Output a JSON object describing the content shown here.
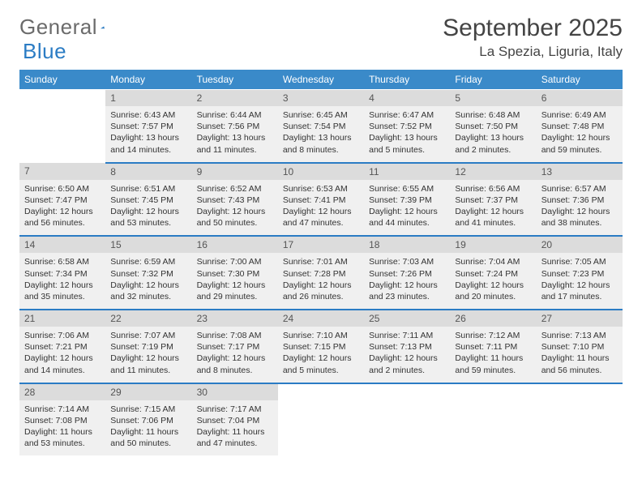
{
  "header": {
    "logo_text_1": "General",
    "logo_text_2": "Blue",
    "month_title": "September 2025",
    "location": "La Spezia, Liguria, Italy"
  },
  "days_of_week": [
    "Sunday",
    "Monday",
    "Tuesday",
    "Wednesday",
    "Thursday",
    "Friday",
    "Saturday"
  ],
  "colors": {
    "header_bg": "#3a8ac9",
    "daynum_bg": "#dcdcdc",
    "cell_bg": "#f0f0f0",
    "accent": "#2b7cc4",
    "text": "#333333"
  },
  "weeks": [
    [
      null,
      {
        "n": "1",
        "sr": "Sunrise: 6:43 AM",
        "ss": "Sunset: 7:57 PM",
        "dl": "Daylight: 13 hours and 14 minutes."
      },
      {
        "n": "2",
        "sr": "Sunrise: 6:44 AM",
        "ss": "Sunset: 7:56 PM",
        "dl": "Daylight: 13 hours and 11 minutes."
      },
      {
        "n": "3",
        "sr": "Sunrise: 6:45 AM",
        "ss": "Sunset: 7:54 PM",
        "dl": "Daylight: 13 hours and 8 minutes."
      },
      {
        "n": "4",
        "sr": "Sunrise: 6:47 AM",
        "ss": "Sunset: 7:52 PM",
        "dl": "Daylight: 13 hours and 5 minutes."
      },
      {
        "n": "5",
        "sr": "Sunrise: 6:48 AM",
        "ss": "Sunset: 7:50 PM",
        "dl": "Daylight: 13 hours and 2 minutes."
      },
      {
        "n": "6",
        "sr": "Sunrise: 6:49 AM",
        "ss": "Sunset: 7:48 PM",
        "dl": "Daylight: 12 hours and 59 minutes."
      }
    ],
    [
      {
        "n": "7",
        "sr": "Sunrise: 6:50 AM",
        "ss": "Sunset: 7:47 PM",
        "dl": "Daylight: 12 hours and 56 minutes."
      },
      {
        "n": "8",
        "sr": "Sunrise: 6:51 AM",
        "ss": "Sunset: 7:45 PM",
        "dl": "Daylight: 12 hours and 53 minutes."
      },
      {
        "n": "9",
        "sr": "Sunrise: 6:52 AM",
        "ss": "Sunset: 7:43 PM",
        "dl": "Daylight: 12 hours and 50 minutes."
      },
      {
        "n": "10",
        "sr": "Sunrise: 6:53 AM",
        "ss": "Sunset: 7:41 PM",
        "dl": "Daylight: 12 hours and 47 minutes."
      },
      {
        "n": "11",
        "sr": "Sunrise: 6:55 AM",
        "ss": "Sunset: 7:39 PM",
        "dl": "Daylight: 12 hours and 44 minutes."
      },
      {
        "n": "12",
        "sr": "Sunrise: 6:56 AM",
        "ss": "Sunset: 7:37 PM",
        "dl": "Daylight: 12 hours and 41 minutes."
      },
      {
        "n": "13",
        "sr": "Sunrise: 6:57 AM",
        "ss": "Sunset: 7:36 PM",
        "dl": "Daylight: 12 hours and 38 minutes."
      }
    ],
    [
      {
        "n": "14",
        "sr": "Sunrise: 6:58 AM",
        "ss": "Sunset: 7:34 PM",
        "dl": "Daylight: 12 hours and 35 minutes."
      },
      {
        "n": "15",
        "sr": "Sunrise: 6:59 AM",
        "ss": "Sunset: 7:32 PM",
        "dl": "Daylight: 12 hours and 32 minutes."
      },
      {
        "n": "16",
        "sr": "Sunrise: 7:00 AM",
        "ss": "Sunset: 7:30 PM",
        "dl": "Daylight: 12 hours and 29 minutes."
      },
      {
        "n": "17",
        "sr": "Sunrise: 7:01 AM",
        "ss": "Sunset: 7:28 PM",
        "dl": "Daylight: 12 hours and 26 minutes."
      },
      {
        "n": "18",
        "sr": "Sunrise: 7:03 AM",
        "ss": "Sunset: 7:26 PM",
        "dl": "Daylight: 12 hours and 23 minutes."
      },
      {
        "n": "19",
        "sr": "Sunrise: 7:04 AM",
        "ss": "Sunset: 7:24 PM",
        "dl": "Daylight: 12 hours and 20 minutes."
      },
      {
        "n": "20",
        "sr": "Sunrise: 7:05 AM",
        "ss": "Sunset: 7:23 PM",
        "dl": "Daylight: 12 hours and 17 minutes."
      }
    ],
    [
      {
        "n": "21",
        "sr": "Sunrise: 7:06 AM",
        "ss": "Sunset: 7:21 PM",
        "dl": "Daylight: 12 hours and 14 minutes."
      },
      {
        "n": "22",
        "sr": "Sunrise: 7:07 AM",
        "ss": "Sunset: 7:19 PM",
        "dl": "Daylight: 12 hours and 11 minutes."
      },
      {
        "n": "23",
        "sr": "Sunrise: 7:08 AM",
        "ss": "Sunset: 7:17 PM",
        "dl": "Daylight: 12 hours and 8 minutes."
      },
      {
        "n": "24",
        "sr": "Sunrise: 7:10 AM",
        "ss": "Sunset: 7:15 PM",
        "dl": "Daylight: 12 hours and 5 minutes."
      },
      {
        "n": "25",
        "sr": "Sunrise: 7:11 AM",
        "ss": "Sunset: 7:13 PM",
        "dl": "Daylight: 12 hours and 2 minutes."
      },
      {
        "n": "26",
        "sr": "Sunrise: 7:12 AM",
        "ss": "Sunset: 7:11 PM",
        "dl": "Daylight: 11 hours and 59 minutes."
      },
      {
        "n": "27",
        "sr": "Sunrise: 7:13 AM",
        "ss": "Sunset: 7:10 PM",
        "dl": "Daylight: 11 hours and 56 minutes."
      }
    ],
    [
      {
        "n": "28",
        "sr": "Sunrise: 7:14 AM",
        "ss": "Sunset: 7:08 PM",
        "dl": "Daylight: 11 hours and 53 minutes."
      },
      {
        "n": "29",
        "sr": "Sunrise: 7:15 AM",
        "ss": "Sunset: 7:06 PM",
        "dl": "Daylight: 11 hours and 50 minutes."
      },
      {
        "n": "30",
        "sr": "Sunrise: 7:17 AM",
        "ss": "Sunset: 7:04 PM",
        "dl": "Daylight: 11 hours and 47 minutes."
      },
      null,
      null,
      null,
      null
    ]
  ]
}
